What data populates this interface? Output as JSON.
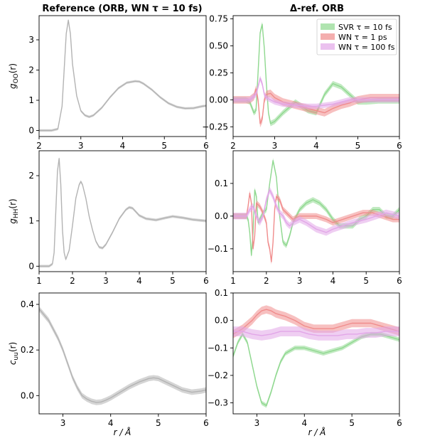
{
  "titles": {
    "left": "Reference (ORB, WN τ = 10 fs)",
    "right": "Δ-ref. ORB"
  },
  "xlabels": {
    "left": "r / Å",
    "right": "r / Å"
  },
  "colors": {
    "reference": "#b3b3b3",
    "svr": "#8fd88f",
    "wn1ps": "#f08c8c",
    "wn100fs": "#e2a6e8"
  },
  "legend": [
    {
      "name": "SVR τ = 10 fs",
      "color": "#8fd88f"
    },
    {
      "name": "WN τ = 1 ps",
      "color": "#f08c8c"
    },
    {
      "name": "WN τ = 100 fs",
      "color": "#e2a6e8"
    }
  ],
  "chart_data": [
    {
      "type": "line",
      "ylabel": "g_OO(r)",
      "xlim": [
        2,
        6
      ],
      "ylim": [
        -0.2,
        3.8
      ],
      "xticks": [
        2,
        3,
        4,
        5,
        6
      ],
      "yticks": [
        0,
        1,
        2,
        3
      ],
      "series": [
        {
          "color": "#b3b3b3",
          "band": 0.04,
          "x": [
            2.0,
            2.3,
            2.45,
            2.55,
            2.6,
            2.65,
            2.7,
            2.75,
            2.8,
            2.9,
            3.0,
            3.1,
            3.2,
            3.3,
            3.5,
            3.7,
            3.9,
            4.1,
            4.3,
            4.4,
            4.5,
            4.7,
            4.9,
            5.1,
            5.3,
            5.5,
            5.7,
            5.9,
            6.0
          ],
          "y": [
            0,
            0,
            0.05,
            0.8,
            2.0,
            3.2,
            3.65,
            3.2,
            2.2,
            1.15,
            0.65,
            0.5,
            0.45,
            0.5,
            0.75,
            1.1,
            1.4,
            1.58,
            1.63,
            1.62,
            1.55,
            1.35,
            1.1,
            0.9,
            0.78,
            0.73,
            0.74,
            0.8,
            0.82
          ]
        }
      ]
    },
    {
      "type": "line",
      "xlim": [
        2,
        6
      ],
      "ylim": [
        -0.34,
        0.78
      ],
      "xticks": [
        2,
        3,
        4,
        5,
        6
      ],
      "yticks": [
        -0.25,
        0,
        0.25,
        0.5,
        0.75
      ],
      "show_legend": true,
      "series": [
        {
          "color": "#8fd88f",
          "band": 0.025,
          "x": [
            2.0,
            2.3,
            2.4,
            2.5,
            2.55,
            2.6,
            2.65,
            2.7,
            2.75,
            2.8,
            2.85,
            2.9,
            3.0,
            3.2,
            3.5,
            3.8,
            4.0,
            4.2,
            4.4,
            4.6,
            4.8,
            5.0,
            5.2,
            5.5,
            5.8,
            6.0
          ],
          "y": [
            0,
            0,
            -0.02,
            -0.12,
            -0.1,
            0.25,
            0.62,
            0.7,
            0.48,
            0.15,
            -0.12,
            -0.22,
            -0.2,
            -0.12,
            -0.02,
            -0.1,
            -0.12,
            0.05,
            0.15,
            0.12,
            0.05,
            -0.02,
            -0.02,
            -0.01,
            -0.01,
            -0.01
          ]
        },
        {
          "color": "#f08c8c",
          "band": 0.035,
          "x": [
            2.0,
            2.4,
            2.5,
            2.55,
            2.6,
            2.65,
            2.7,
            2.75,
            2.8,
            2.9,
            3.0,
            3.2,
            3.5,
            3.8,
            4.0,
            4.2,
            4.4,
            4.6,
            4.8,
            5.0,
            5.3,
            5.6,
            6.0
          ],
          "y": [
            0,
            0,
            0.03,
            0.1,
            0.0,
            -0.22,
            -0.18,
            0.0,
            0.05,
            0.06,
            0.02,
            -0.02,
            -0.05,
            -0.08,
            -0.1,
            -0.12,
            -0.08,
            -0.05,
            -0.03,
            0.0,
            0.02,
            0.02,
            0.02
          ]
        },
        {
          "color": "#e2a6e8",
          "band": 0.025,
          "x": [
            2.0,
            2.4,
            2.55,
            2.6,
            2.65,
            2.7,
            2.75,
            2.8,
            2.9,
            3.0,
            3.2,
            3.5,
            3.8,
            4.0,
            4.2,
            4.4,
            4.6,
            4.8,
            5.0,
            5.3,
            5.6,
            6.0
          ],
          "y": [
            0,
            0,
            0.05,
            0.12,
            0.2,
            0.15,
            0.05,
            0.02,
            0.0,
            -0.02,
            -0.04,
            -0.05,
            -0.06,
            -0.06,
            -0.05,
            -0.04,
            -0.02,
            0.0,
            0.0,
            0.0,
            0.0,
            0.0
          ]
        }
      ]
    },
    {
      "type": "line",
      "ylabel": "g_HH(r)",
      "xlim": [
        1,
        6
      ],
      "ylim": [
        -0.12,
        2.55
      ],
      "xticks": [
        1,
        2,
        3,
        4,
        5,
        6
      ],
      "yticks": [
        0,
        1,
        2
      ],
      "series": [
        {
          "color": "#b3b3b3",
          "band": 0.03,
          "x": [
            1.0,
            1.3,
            1.4,
            1.45,
            1.5,
            1.55,
            1.6,
            1.65,
            1.7,
            1.75,
            1.8,
            1.9,
            2.0,
            2.1,
            2.2,
            2.25,
            2.3,
            2.4,
            2.5,
            2.6,
            2.7,
            2.8,
            2.9,
            3.0,
            3.2,
            3.4,
            3.6,
            3.7,
            3.8,
            3.9,
            4.0,
            4.2,
            4.5,
            4.8,
            5.0,
            5.3,
            5.6,
            6.0
          ],
          "y": [
            0,
            0,
            0.05,
            0.3,
            1.2,
            2.1,
            2.38,
            1.8,
            0.8,
            0.3,
            0.15,
            0.35,
            0.9,
            1.5,
            1.8,
            1.87,
            1.8,
            1.5,
            1.1,
            0.8,
            0.55,
            0.42,
            0.4,
            0.48,
            0.75,
            1.05,
            1.25,
            1.3,
            1.28,
            1.2,
            1.12,
            1.05,
            1.02,
            1.07,
            1.1,
            1.07,
            1.03,
            1.0
          ]
        }
      ]
    },
    {
      "type": "line",
      "xlim": [
        1,
        6
      ],
      "ylim": [
        -0.17,
        0.2
      ],
      "xticks": [
        1,
        2,
        3,
        4,
        5,
        6
      ],
      "yticks": [
        -0.1,
        0,
        0.1
      ],
      "series": [
        {
          "color": "#8fd88f",
          "band": 0.008,
          "x": [
            1.0,
            1.4,
            1.45,
            1.5,
            1.55,
            1.6,
            1.65,
            1.7,
            1.75,
            1.8,
            1.9,
            2.0,
            2.1,
            2.2,
            2.3,
            2.4,
            2.5,
            2.6,
            2.7,
            2.8,
            2.9,
            3.0,
            3.2,
            3.4,
            3.6,
            3.8,
            4.0,
            4.2,
            4.4,
            4.6,
            4.8,
            5.0,
            5.2,
            5.4,
            5.6,
            5.8,
            6.0
          ],
          "y": [
            0,
            0,
            -0.01,
            -0.05,
            -0.12,
            -0.05,
            0.08,
            0.06,
            -0.02,
            -0.01,
            0.01,
            0.02,
            0.1,
            0.17,
            0.12,
            0.0,
            -0.08,
            -0.09,
            -0.06,
            -0.02,
            0.0,
            0.02,
            0.04,
            0.05,
            0.04,
            0.02,
            -0.01,
            -0.03,
            -0.03,
            -0.03,
            -0.01,
            0.0,
            0.02,
            0.02,
            0.0,
            0.0,
            0.02
          ]
        },
        {
          "color": "#f08c8c",
          "band": 0.009,
          "x": [
            1.0,
            1.4,
            1.45,
            1.5,
            1.55,
            1.6,
            1.65,
            1.7,
            1.8,
            1.9,
            2.0,
            2.05,
            2.1,
            2.15,
            2.2,
            2.25,
            2.3,
            2.4,
            2.5,
            2.6,
            2.7,
            2.8,
            3.0,
            3.2,
            3.5,
            3.8,
            4.0,
            4.3,
            4.6,
            4.9,
            5.2,
            5.5,
            5.8,
            6.0
          ],
          "y": [
            0,
            0,
            0.03,
            0.07,
            0.04,
            -0.1,
            -0.06,
            0.04,
            0.03,
            0.01,
            -0.02,
            -0.08,
            -0.1,
            -0.14,
            -0.08,
            0.02,
            0.06,
            0.05,
            0.02,
            0.01,
            0.0,
            -0.01,
            0.0,
            0.0,
            0.0,
            -0.01,
            -0.02,
            -0.01,
            0.0,
            0.01,
            0.01,
            0.0,
            -0.01,
            -0.01
          ]
        },
        {
          "color": "#e2a6e8",
          "band": 0.01,
          "x": [
            1.0,
            1.4,
            1.5,
            1.6,
            1.7,
            1.8,
            1.9,
            2.0,
            2.1,
            2.2,
            2.3,
            2.4,
            2.5,
            2.6,
            2.7,
            2.8,
            3.0,
            3.2,
            3.5,
            3.8,
            4.0,
            4.3,
            4.6,
            5.0,
            5.3,
            5.6,
            6.0
          ],
          "y": [
            0,
            0,
            0.02,
            0.03,
            0.0,
            -0.02,
            0.0,
            0.05,
            0.08,
            0.06,
            0.03,
            0.01,
            0.0,
            -0.02,
            -0.03,
            -0.02,
            -0.01,
            -0.02,
            -0.04,
            -0.05,
            -0.04,
            -0.03,
            -0.02,
            -0.01,
            0.0,
            0.01,
            0.0
          ]
        }
      ]
    },
    {
      "type": "line",
      "ylabel": "c_uu(r)",
      "xlim": [
        2.5,
        6
      ],
      "ylim": [
        -0.08,
        0.45
      ],
      "xticks": [
        3,
        4,
        5,
        6
      ],
      "yticks": [
        0.0,
        0.2,
        0.4
      ],
      "series": [
        {
          "color": "#b3b3b3",
          "band": 0.012,
          "x": [
            2.5,
            2.7,
            2.9,
            3.0,
            3.1,
            3.2,
            3.3,
            3.4,
            3.5,
            3.6,
            3.7,
            3.8,
            3.9,
            4.0,
            4.2,
            4.4,
            4.6,
            4.8,
            4.9,
            5.0,
            5.1,
            5.3,
            5.5,
            5.7,
            5.9,
            6.0
          ],
          "y": [
            0.38,
            0.33,
            0.25,
            0.2,
            0.14,
            0.08,
            0.035,
            0.0,
            -0.015,
            -0.025,
            -0.03,
            -0.028,
            -0.02,
            -0.01,
            0.015,
            0.04,
            0.06,
            0.075,
            0.078,
            0.075,
            0.065,
            0.045,
            0.025,
            0.015,
            0.02,
            0.025
          ]
        }
      ]
    },
    {
      "type": "line",
      "xlim": [
        2.5,
        6
      ],
      "ylim": [
        -0.34,
        0.1
      ],
      "xticks": [
        3,
        4,
        5,
        6
      ],
      "yticks": [
        -0.3,
        -0.2,
        -0.1,
        0.0,
        0.1
      ],
      "series": [
        {
          "color": "#8fd88f",
          "band": 0.008,
          "x": [
            2.5,
            2.6,
            2.7,
            2.8,
            2.9,
            3.0,
            3.1,
            3.2,
            3.3,
            3.4,
            3.5,
            3.6,
            3.8,
            4.0,
            4.2,
            4.4,
            4.6,
            4.8,
            5.0,
            5.2,
            5.4,
            5.6,
            5.8,
            6.0
          ],
          "y": [
            -0.13,
            -0.08,
            -0.05,
            -0.08,
            -0.16,
            -0.24,
            -0.3,
            -0.31,
            -0.26,
            -0.2,
            -0.15,
            -0.12,
            -0.1,
            -0.1,
            -0.11,
            -0.12,
            -0.11,
            -0.1,
            -0.08,
            -0.06,
            -0.05,
            -0.05,
            -0.06,
            -0.07
          ]
        },
        {
          "color": "#f08c8c",
          "band": 0.015,
          "x": [
            2.5,
            2.7,
            2.9,
            3.0,
            3.1,
            3.2,
            3.3,
            3.4,
            3.5,
            3.6,
            3.8,
            4.0,
            4.2,
            4.4,
            4.6,
            4.8,
            5.0,
            5.2,
            5.4,
            5.6,
            5.8,
            6.0
          ],
          "y": [
            -0.05,
            -0.03,
            0.0,
            0.02,
            0.035,
            0.04,
            0.035,
            0.025,
            0.02,
            0.015,
            0.0,
            -0.02,
            -0.03,
            -0.03,
            -0.03,
            -0.02,
            -0.01,
            -0.01,
            -0.01,
            -0.02,
            -0.03,
            -0.04
          ]
        },
        {
          "color": "#e2a6e8",
          "band": 0.018,
          "x": [
            2.5,
            2.7,
            2.9,
            3.1,
            3.3,
            3.5,
            3.7,
            3.9,
            4.1,
            4.3,
            4.5,
            4.7,
            4.9,
            5.1,
            5.3,
            5.5,
            5.7,
            5.9,
            6.0
          ],
          "y": [
            -0.04,
            -0.04,
            -0.05,
            -0.055,
            -0.05,
            -0.04,
            -0.04,
            -0.04,
            -0.05,
            -0.055,
            -0.055,
            -0.055,
            -0.05,
            -0.05,
            -0.045,
            -0.045,
            -0.04,
            -0.04,
            -0.04
          ]
        }
      ]
    }
  ]
}
